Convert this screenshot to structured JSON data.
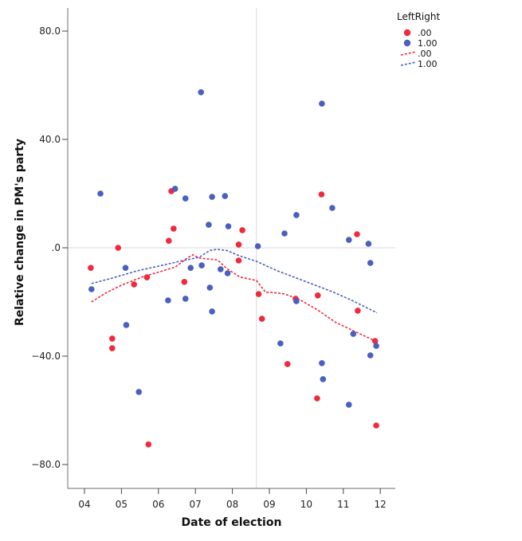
{
  "chart_data": {
    "type": "scatter",
    "title": "",
    "xlabel": "Date of election",
    "ylabel": "Relative change in PM's party",
    "xlim": [
      3.6,
      12.4
    ],
    "ylim": [
      -89,
      89
    ],
    "x_ticks": [
      4,
      5,
      6,
      7,
      8,
      9,
      10,
      11,
      12
    ],
    "x_tick_labels": [
      "04",
      "05",
      "06",
      "07",
      "08",
      "09",
      "10",
      "11",
      "12"
    ],
    "y_ticks": [
      80,
      40,
      0,
      -40,
      -80
    ],
    "y_tick_labels": [
      "80.0",
      "40.0",
      ".0",
      "-40.0",
      "-80.0"
    ],
    "reference_lines": {
      "x": 8.65,
      "y": 0
    },
    "grid": false,
    "legend": {
      "title": "LeftRight",
      "placement": "top-right",
      "entries": [
        {
          "label": ".00",
          "kind": "marker",
          "series": "0"
        },
        {
          "label": "1.00",
          "kind": "marker",
          "series": "1"
        },
        {
          "label": ".00",
          "kind": "line",
          "series": "0"
        },
        {
          "label": "1.00",
          "kind": "line",
          "series": "1"
        }
      ]
    },
    "series": [
      {
        "name": ".00",
        "color": "#f0293e",
        "points": [
          [
            4.17,
            -7.4
          ],
          [
            4.91,
            0.0
          ],
          [
            4.75,
            -33.5
          ],
          [
            4.75,
            -37.1
          ],
          [
            5.34,
            -13.5
          ],
          [
            5.73,
            -72.6
          ],
          [
            5.69,
            -10.9
          ],
          [
            6.28,
            2.6
          ],
          [
            6.35,
            20.9
          ],
          [
            6.41,
            7.1
          ],
          [
            6.7,
            -12.6
          ],
          [
            8.17,
            1.2
          ],
          [
            8.27,
            6.5
          ],
          [
            8.17,
            -4.7
          ],
          [
            8.71,
            -17.1
          ],
          [
            8.8,
            -26.2
          ],
          [
            9.49,
            -42.9
          ],
          [
            9.71,
            -18.8
          ],
          [
            10.31,
            -17.6
          ],
          [
            10.41,
            19.7
          ],
          [
            10.29,
            -55.6
          ],
          [
            11.37,
            5.0
          ],
          [
            11.39,
            -23.2
          ],
          [
            11.86,
            -34.4
          ],
          [
            11.89,
            -65.6
          ]
        ]
      },
      {
        "name": "1.00",
        "color": "#4a5fbe",
        "points": [
          [
            4.43,
            20.0
          ],
          [
            4.19,
            -15.3
          ],
          [
            5.11,
            -7.4
          ],
          [
            5.13,
            -28.5
          ],
          [
            5.47,
            -53.2
          ],
          [
            6.26,
            -19.4
          ],
          [
            6.45,
            21.8
          ],
          [
            6.73,
            18.2
          ],
          [
            6.73,
            -18.8
          ],
          [
            6.87,
            -7.4
          ],
          [
            7.15,
            57.4
          ],
          [
            7.17,
            -6.5
          ],
          [
            7.36,
            8.5
          ],
          [
            7.39,
            -14.7
          ],
          [
            7.45,
            -23.5
          ],
          [
            7.45,
            18.8
          ],
          [
            7.68,
            -7.9
          ],
          [
            7.8,
            19.1
          ],
          [
            7.87,
            -9.4
          ],
          [
            7.89,
            7.9
          ],
          [
            8.69,
            0.6
          ],
          [
            9.3,
            -35.3
          ],
          [
            9.41,
            5.3
          ],
          [
            9.73,
            -19.7
          ],
          [
            9.73,
            12.1
          ],
          [
            10.42,
            -42.6
          ],
          [
            10.45,
            -48.5
          ],
          [
            10.42,
            53.2
          ],
          [
            10.7,
            14.7
          ],
          [
            11.15,
            -57.9
          ],
          [
            11.15,
            2.9
          ],
          [
            11.27,
            -31.8
          ],
          [
            11.68,
            1.5
          ],
          [
            11.73,
            -5.6
          ],
          [
            11.73,
            -39.7
          ],
          [
            11.89,
            -36.2
          ]
        ]
      }
    ],
    "fit_lines": [
      {
        "name": ".00",
        "color": "#f0293e",
        "style": "dotted",
        "points": [
          [
            4.19,
            -20.0
          ],
          [
            4.6,
            -16.5
          ],
          [
            5.0,
            -13.8
          ],
          [
            5.6,
            -10.6
          ],
          [
            6.0,
            -9.0
          ],
          [
            6.46,
            -7.1
          ],
          [
            6.8,
            -3.6
          ],
          [
            6.93,
            -2.6
          ],
          [
            7.1,
            -3.8
          ],
          [
            7.4,
            -4.2
          ],
          [
            7.6,
            -4.5
          ],
          [
            7.84,
            -7.6
          ],
          [
            8.2,
            -10.8
          ],
          [
            8.65,
            -12.1
          ],
          [
            8.9,
            -16.5
          ],
          [
            9.1,
            -16.5
          ],
          [
            9.4,
            -17.0
          ],
          [
            9.8,
            -19.0
          ],
          [
            10.3,
            -22.9
          ],
          [
            10.8,
            -27.6
          ],
          [
            11.3,
            -30.8
          ],
          [
            11.91,
            -34.7
          ]
        ]
      },
      {
        "name": "1.00",
        "color": "#4a5fbe",
        "style": "dotted",
        "points": [
          [
            4.19,
            -13.2
          ],
          [
            4.8,
            -11.0
          ],
          [
            5.4,
            -8.6
          ],
          [
            6.0,
            -6.8
          ],
          [
            6.6,
            -4.9
          ],
          [
            7.1,
            -3.5
          ],
          [
            7.4,
            -0.9
          ],
          [
            7.6,
            -0.6
          ],
          [
            7.85,
            -1.0
          ],
          [
            8.2,
            -3.0
          ],
          [
            8.65,
            -5.0
          ],
          [
            9.2,
            -8.4
          ],
          [
            9.7,
            -11.0
          ],
          [
            10.2,
            -13.6
          ],
          [
            10.7,
            -16.2
          ],
          [
            11.2,
            -19.2
          ],
          [
            11.91,
            -24.0
          ]
        ]
      }
    ]
  }
}
